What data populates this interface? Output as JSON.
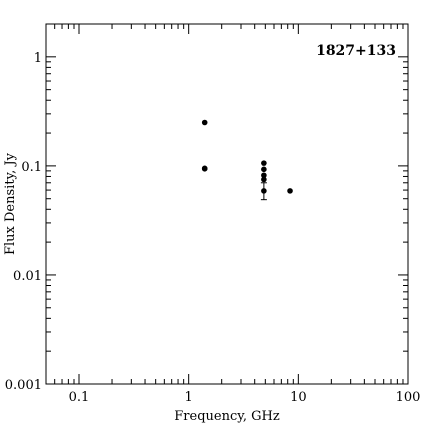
{
  "chart_data": {
    "type": "scatter",
    "title": "1827+133",
    "xlabel": "Frequency, GHz",
    "ylabel": "Flux Density, Jy",
    "xscale": "log",
    "yscale": "log",
    "xlim": [
      0.05,
      100
    ],
    "ylim": [
      0.001,
      2
    ],
    "grid": false,
    "legend": "none",
    "x_ticks": [
      {
        "value": 0.1,
        "label": "0.1"
      },
      {
        "value": 1,
        "label": "1"
      },
      {
        "value": 10,
        "label": "10"
      },
      {
        "value": 100,
        "label": "100"
      }
    ],
    "y_ticks": [
      {
        "value": 0.001,
        "label": "0.001"
      },
      {
        "value": 0.01,
        "label": "0.01"
      },
      {
        "value": 0.1,
        "label": "0.1"
      },
      {
        "value": 1,
        "label": "1"
      }
    ],
    "points": [
      {
        "x": 1.4,
        "y": 0.25
      },
      {
        "x": 1.4,
        "y": 0.095
      },
      {
        "x": 1.4,
        "y": 0.094
      },
      {
        "x": 4.85,
        "y": 0.106
      },
      {
        "x": 4.85,
        "y": 0.093
      },
      {
        "x": 4.85,
        "y": 0.082
      },
      {
        "x": 4.85,
        "y": 0.075
      },
      {
        "x": 4.85,
        "y": 0.059,
        "yerr": [
          0.049,
          0.07
        ]
      },
      {
        "x": 8.4,
        "y": 0.059
      }
    ],
    "colors": {
      "marker": "#000000",
      "axis": "#000000",
      "background": "#ffffff"
    }
  }
}
